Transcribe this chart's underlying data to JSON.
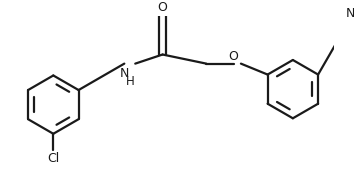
{
  "bg": "#ffffff",
  "lc": "#1a1a1a",
  "lw": 1.6,
  "figsize": [
    3.54,
    1.76
  ],
  "dpi": 100,
  "fs": 8.5,
  "ring_r": 0.32,
  "xlim": [
    0.05,
    3.7
  ],
  "ylim": [
    -0.05,
    1.65
  ]
}
